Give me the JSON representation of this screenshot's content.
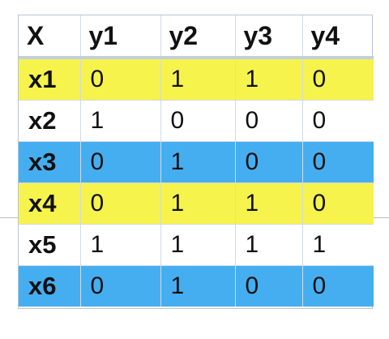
{
  "table": {
    "headers": [
      "X",
      "y1",
      "y2",
      "y3",
      "y4"
    ],
    "rows": [
      {
        "label": "x1",
        "values": [
          "0",
          "1",
          "1",
          "0"
        ],
        "color": "#f6f34c"
      },
      {
        "label": "x2",
        "values": [
          "1",
          "0",
          "0",
          "0"
        ],
        "color": "#ffffff"
      },
      {
        "label": "x3",
        "values": [
          "0",
          "1",
          "0",
          "0"
        ],
        "color": "#45aef0"
      },
      {
        "label": "x4",
        "values": [
          "0",
          "1",
          "1",
          "0"
        ],
        "color": "#f6f34c"
      },
      {
        "label": "x5",
        "values": [
          "1",
          "1",
          "1",
          "1"
        ],
        "color": "#ffffff"
      },
      {
        "label": "x6",
        "values": [
          "0",
          "1",
          "0",
          "0"
        ],
        "color": "#45aef0"
      }
    ]
  }
}
